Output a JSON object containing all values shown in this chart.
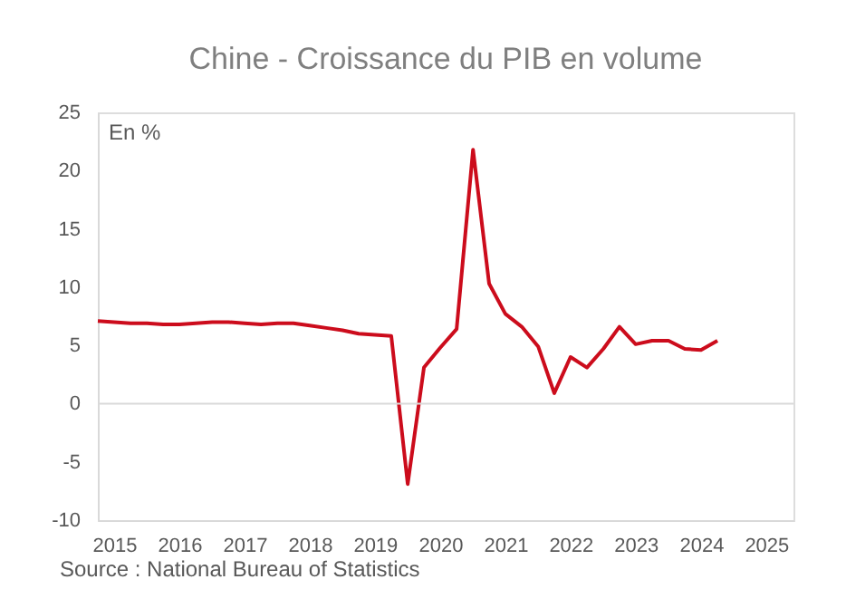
{
  "chart_data": {
    "type": "line",
    "title": "Chine - Croissance du PIB en volume",
    "ylabel": "En %",
    "x": [
      "2015-04",
      "2015-07",
      "2015-10",
      "2016-01",
      "2016-04",
      "2016-07",
      "2016-10",
      "2017-01",
      "2017-04",
      "2017-07",
      "2017-10",
      "2018-01",
      "2018-04",
      "2018-07",
      "2018-10",
      "2019-01",
      "2019-04",
      "2019-07",
      "2019-10",
      "2020-01",
      "2020-04",
      "2020-07",
      "2020-10",
      "2021-01",
      "2021-04",
      "2021-07",
      "2021-10",
      "2022-01",
      "2022-04",
      "2022-07",
      "2022-10",
      "2023-01",
      "2023-04",
      "2023-07",
      "2023-10",
      "2024-01",
      "2024-04",
      "2024-07",
      "2024-10"
    ],
    "series": [
      {
        "color": "#cc0c1c",
        "values": [
          7.1,
          7.0,
          6.9,
          6.9,
          6.8,
          6.8,
          6.9,
          7.0,
          7.0,
          6.9,
          6.8,
          6.9,
          6.9,
          6.7,
          6.5,
          6.3,
          6.0,
          5.9,
          5.8,
          -6.9,
          3.1,
          4.8,
          6.4,
          21.8,
          10.3,
          7.7,
          6.6,
          4.9,
          0.9,
          4.0,
          3.1,
          4.7,
          6.6,
          5.1,
          5.4,
          5.4,
          4.7,
          4.6,
          5.4
        ]
      }
    ],
    "xlim": [
      "2015-04",
      "2025-12"
    ],
    "xticks": [
      {
        "value": "2015-07",
        "label": "2015"
      },
      {
        "value": "2016-07",
        "label": "2016"
      },
      {
        "value": "2017-07",
        "label": "2017"
      },
      {
        "value": "2018-07",
        "label": "2018"
      },
      {
        "value": "2019-07",
        "label": "2019"
      },
      {
        "value": "2020-07",
        "label": "2020"
      },
      {
        "value": "2021-07",
        "label": "2021"
      },
      {
        "value": "2022-07",
        "label": "2022"
      },
      {
        "value": "2023-07",
        "label": "2023"
      },
      {
        "value": "2024-07",
        "label": "2024"
      },
      {
        "value": "2025-07",
        "label": "2025"
      }
    ],
    "ylim": [
      -10,
      25
    ],
    "yticks": [
      -10,
      -5,
      0,
      5,
      10,
      15,
      20,
      25
    ],
    "ref_lines": [
      {
        "axis": "y",
        "value": 0,
        "color": "#d9d9d9"
      }
    ],
    "grid": false,
    "marker": "none",
    "line_style": "solid",
    "annotations": [
      "Source : National Bureau of Statistics"
    ]
  }
}
